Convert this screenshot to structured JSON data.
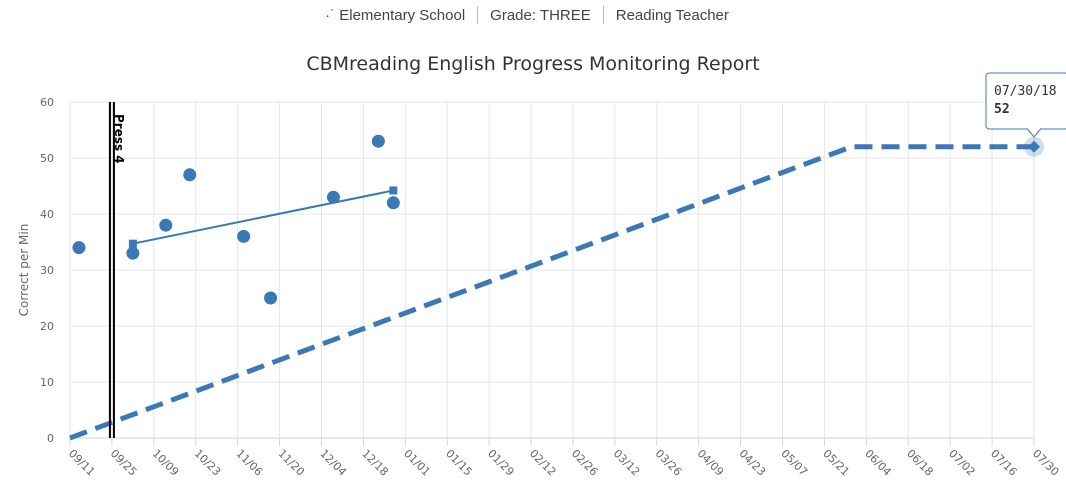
{
  "header": {
    "items": [
      "·˙ Elementary School",
      "Grade: THREE",
      "Reading Teacher"
    ]
  },
  "chart_data": {
    "type": "scatter",
    "title": "CBMreading English Progress Monitoring Report",
    "ylabel": "Correct per Min",
    "xlabel": "",
    "ylim": [
      0,
      60
    ],
    "yticks": [
      0,
      10,
      20,
      30,
      40,
      50,
      60
    ],
    "xlim": [
      "2017-09-11",
      "2018-07-30"
    ],
    "xtick_labels": [
      "09/11",
      "09/25",
      "10/09",
      "10/23",
      "11/06",
      "11/20",
      "12/04",
      "12/18",
      "01/01",
      "01/15",
      "01/29",
      "02/12",
      "02/26",
      "03/12",
      "03/26",
      "04/09",
      "04/23",
      "05/07",
      "05/21",
      "06/04",
      "06/18",
      "07/02",
      "07/16",
      "07/30"
    ],
    "grid": true,
    "series": [
      {
        "type": "scatter",
        "color": "#3a79b5",
        "points": [
          {
            "x": "2017-09-14",
            "y": 34
          },
          {
            "x": "2017-10-02",
            "y": 33
          },
          {
            "x": "2017-10-13",
            "y": 38
          },
          {
            "x": "2017-10-21",
            "y": 47
          },
          {
            "x": "2017-11-08",
            "y": 36
          },
          {
            "x": "2017-11-17",
            "y": 25
          },
          {
            "x": "2017-12-08",
            "y": 43
          },
          {
            "x": "2017-12-23",
            "y": 53
          },
          {
            "x": "2017-12-28",
            "y": 42
          }
        ]
      },
      {
        "type": "line",
        "color": "#3a79b5",
        "marker": "square",
        "points": [
          {
            "x": "2017-10-02",
            "y": 34.7
          },
          {
            "x": "2017-12-28",
            "y": 44.2
          }
        ]
      },
      {
        "type": "line",
        "style": "dashed",
        "color": "#3a79b5",
        "points": [
          {
            "x": "2017-09-11",
            "y": 0
          },
          {
            "x": "2018-05-30",
            "y": 52
          },
          {
            "x": "2018-07-30",
            "y": 52
          }
        ]
      }
    ],
    "annotations": [
      {
        "type": "phase-line",
        "x": "2017-09-25",
        "label": "Press 4"
      }
    ],
    "tooltip": {
      "date": "07/30/18",
      "value": "52",
      "x": "2018-07-30",
      "y": 52
    }
  }
}
